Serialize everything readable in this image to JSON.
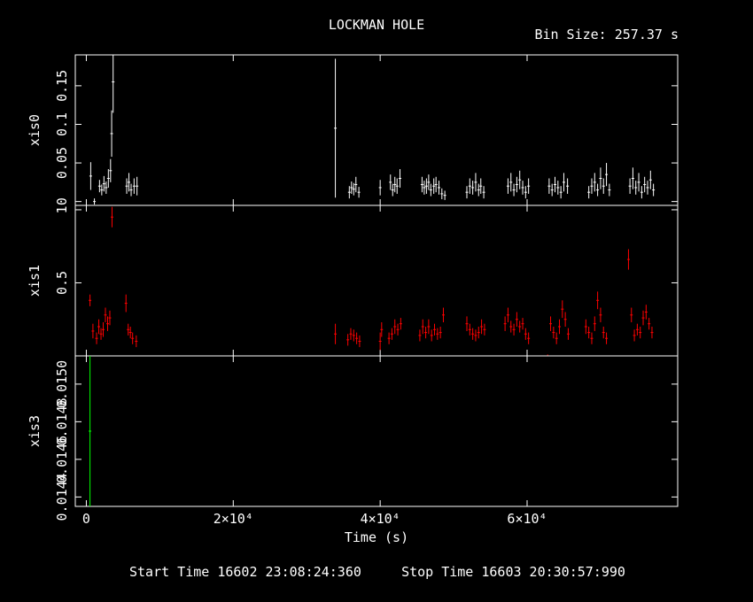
{
  "title": "LOCKMAN HOLE",
  "bin_size_label": "Bin Size: 257.37 s",
  "times": {
    "start": "Start Time 16602 23:08:24:360",
    "stop": "Stop Time 16603 20:30:57:990"
  },
  "chart_data": {
    "type": "scatter",
    "title": "LOCKMAN HOLE",
    "xlabel": "Time (s)",
    "xlim": [
      -1500,
      80500
    ],
    "xticks": [
      0,
      20000,
      40000,
      60000
    ],
    "xtick_labels": [
      "0",
      "2×10⁴",
      "4×10⁴",
      "6×10⁴"
    ],
    "background": "#000000",
    "panels": [
      {
        "name": "xis0",
        "ylabel": "xis0",
        "color": "#ffffff",
        "ylim": [
          -0.005,
          0.19
        ],
        "yticks": [
          0,
          0.05,
          0.1,
          0.15
        ],
        "ytick_labels": [
          "0",
          "0.05",
          "0.1",
          "0.15"
        ],
        "points": [
          [
            600,
            0.033,
            0.018
          ],
          [
            1100,
            0.0,
            0.004
          ],
          [
            1800,
            0.02,
            0.008
          ],
          [
            2100,
            0.015,
            0.007
          ],
          [
            2400,
            0.023,
            0.01
          ],
          [
            2700,
            0.018,
            0.008
          ],
          [
            3000,
            0.03,
            0.012
          ],
          [
            3300,
            0.04,
            0.015
          ],
          [
            3450,
            0.088,
            0.03
          ],
          [
            3650,
            0.155,
            0.04
          ],
          [
            5500,
            0.02,
            0.01
          ],
          [
            5800,
            0.025,
            0.012
          ],
          [
            6100,
            0.015,
            0.008
          ],
          [
            6500,
            0.02,
            0.01
          ],
          [
            6900,
            0.02,
            0.012
          ],
          [
            33900,
            0.095,
            0.09
          ],
          [
            35800,
            0.012,
            0.008
          ],
          [
            36100,
            0.018,
            0.008
          ],
          [
            36400,
            0.016,
            0.008
          ],
          [
            36700,
            0.022,
            0.01
          ],
          [
            37100,
            0.012,
            0.007
          ],
          [
            40000,
            0.018,
            0.01
          ],
          [
            41400,
            0.025,
            0.01
          ],
          [
            41700,
            0.015,
            0.008
          ],
          [
            42000,
            0.022,
            0.01
          ],
          [
            42300,
            0.02,
            0.01
          ],
          [
            42700,
            0.03,
            0.012
          ],
          [
            45700,
            0.022,
            0.01
          ],
          [
            46000,
            0.018,
            0.009
          ],
          [
            46300,
            0.02,
            0.01
          ],
          [
            46600,
            0.025,
            0.01
          ],
          [
            46900,
            0.015,
            0.008
          ],
          [
            47300,
            0.02,
            0.01
          ],
          [
            47600,
            0.022,
            0.01
          ],
          [
            48000,
            0.018,
            0.009
          ],
          [
            48400,
            0.01,
            0.007
          ],
          [
            48800,
            0.008,
            0.006
          ],
          [
            51800,
            0.012,
            0.008
          ],
          [
            52200,
            0.02,
            0.01
          ],
          [
            52600,
            0.018,
            0.009
          ],
          [
            53000,
            0.025,
            0.012
          ],
          [
            53400,
            0.015,
            0.008
          ],
          [
            53700,
            0.02,
            0.01
          ],
          [
            54100,
            0.012,
            0.008
          ],
          [
            57400,
            0.02,
            0.01
          ],
          [
            57800,
            0.025,
            0.012
          ],
          [
            58200,
            0.015,
            0.008
          ],
          [
            58600,
            0.022,
            0.01
          ],
          [
            59000,
            0.028,
            0.012
          ],
          [
            59400,
            0.018,
            0.009
          ],
          [
            59800,
            0.012,
            0.008
          ],
          [
            60200,
            0.02,
            0.01
          ],
          [
            63000,
            0.02,
            0.01
          ],
          [
            63400,
            0.015,
            0.008
          ],
          [
            63800,
            0.022,
            0.01
          ],
          [
            64200,
            0.018,
            0.009
          ],
          [
            64600,
            0.012,
            0.008
          ],
          [
            65000,
            0.025,
            0.012
          ],
          [
            65500,
            0.02,
            0.01
          ],
          [
            68400,
            0.012,
            0.008
          ],
          [
            68800,
            0.02,
            0.01
          ],
          [
            69200,
            0.025,
            0.012
          ],
          [
            69600,
            0.015,
            0.008
          ],
          [
            70000,
            0.03,
            0.014
          ],
          [
            70400,
            0.02,
            0.01
          ],
          [
            70800,
            0.035,
            0.015
          ],
          [
            71200,
            0.015,
            0.008
          ],
          [
            74000,
            0.02,
            0.01
          ],
          [
            74400,
            0.03,
            0.014
          ],
          [
            74800,
            0.018,
            0.009
          ],
          [
            75200,
            0.025,
            0.012
          ],
          [
            75600,
            0.012,
            0.008
          ],
          [
            76000,
            0.022,
            0.01
          ],
          [
            76400,
            0.018,
            0.009
          ],
          [
            76800,
            0.028,
            0.012
          ],
          [
            77200,
            0.015,
            0.008
          ]
        ]
      },
      {
        "name": "xis1",
        "ylabel": "xis1",
        "color": "#ff0000",
        "ylim": [
          0,
          1.03
        ],
        "yticks": [
          0.5,
          1
        ],
        "ytick_labels": [
          "0.5",
          "1"
        ],
        "points": [
          [
            500,
            0.38,
            0.04
          ],
          [
            900,
            0.17,
            0.05
          ],
          [
            1400,
            0.12,
            0.04
          ],
          [
            1700,
            0.2,
            0.05
          ],
          [
            2000,
            0.15,
            0.04
          ],
          [
            2300,
            0.18,
            0.05
          ],
          [
            2600,
            0.28,
            0.05
          ],
          [
            2900,
            0.22,
            0.05
          ],
          [
            3200,
            0.26,
            0.05
          ],
          [
            3500,
            0.95,
            0.07
          ],
          [
            5400,
            0.36,
            0.06
          ],
          [
            5700,
            0.18,
            0.04
          ],
          [
            6000,
            0.16,
            0.04
          ],
          [
            6300,
            0.12,
            0.04
          ],
          [
            6800,
            0.1,
            0.04
          ],
          [
            33900,
            0.15,
            0.07
          ],
          [
            35600,
            0.11,
            0.04
          ],
          [
            36000,
            0.15,
            0.04
          ],
          [
            36400,
            0.14,
            0.04
          ],
          [
            36800,
            0.12,
            0.04
          ],
          [
            37200,
            0.1,
            0.04
          ],
          [
            40000,
            0.1,
            0.06
          ],
          [
            40200,
            0.18,
            0.05
          ],
          [
            41200,
            0.12,
            0.04
          ],
          [
            41600,
            0.15,
            0.04
          ],
          [
            42000,
            0.2,
            0.05
          ],
          [
            42400,
            0.18,
            0.04
          ],
          [
            42800,
            0.22,
            0.04
          ],
          [
            45400,
            0.14,
            0.04
          ],
          [
            45800,
            0.2,
            0.05
          ],
          [
            46200,
            0.16,
            0.04
          ],
          [
            46600,
            0.2,
            0.05
          ],
          [
            47000,
            0.14,
            0.04
          ],
          [
            47400,
            0.18,
            0.04
          ],
          [
            47800,
            0.15,
            0.04
          ],
          [
            48200,
            0.16,
            0.04
          ],
          [
            48600,
            0.28,
            0.05
          ],
          [
            51800,
            0.22,
            0.05
          ],
          [
            52200,
            0.18,
            0.04
          ],
          [
            52600,
            0.15,
            0.04
          ],
          [
            53000,
            0.14,
            0.04
          ],
          [
            53400,
            0.16,
            0.04
          ],
          [
            53800,
            0.2,
            0.05
          ],
          [
            54200,
            0.18,
            0.04
          ],
          [
            57000,
            0.22,
            0.05
          ],
          [
            57400,
            0.28,
            0.05
          ],
          [
            57800,
            0.2,
            0.04
          ],
          [
            58200,
            0.18,
            0.04
          ],
          [
            58600,
            0.25,
            0.05
          ],
          [
            59000,
            0.2,
            0.04
          ],
          [
            59400,
            0.22,
            0.04
          ],
          [
            59800,
            0.15,
            0.04
          ],
          [
            60200,
            0.12,
            0.04
          ],
          [
            62800,
            0.0,
            0.01
          ],
          [
            63200,
            0.22,
            0.05
          ],
          [
            63600,
            0.16,
            0.04
          ],
          [
            64000,
            0.12,
            0.04
          ],
          [
            64400,
            0.2,
            0.05
          ],
          [
            64800,
            0.32,
            0.06
          ],
          [
            65200,
            0.25,
            0.05
          ],
          [
            65600,
            0.15,
            0.04
          ],
          [
            68000,
            0.2,
            0.05
          ],
          [
            68400,
            0.16,
            0.04
          ],
          [
            68800,
            0.12,
            0.04
          ],
          [
            69200,
            0.22,
            0.05
          ],
          [
            69600,
            0.38,
            0.06
          ],
          [
            70000,
            0.28,
            0.05
          ],
          [
            70400,
            0.16,
            0.04
          ],
          [
            70800,
            0.12,
            0.04
          ],
          [
            73800,
            0.66,
            0.07
          ],
          [
            74200,
            0.28,
            0.05
          ],
          [
            74600,
            0.14,
            0.04
          ],
          [
            75000,
            0.18,
            0.04
          ],
          [
            75400,
            0.16,
            0.04
          ],
          [
            75800,
            0.26,
            0.05
          ],
          [
            76200,
            0.3,
            0.05
          ],
          [
            76600,
            0.22,
            0.04
          ],
          [
            77000,
            0.16,
            0.04
          ]
        ]
      },
      {
        "name": "xis3",
        "ylabel": "xis3",
        "color": "#00ff00",
        "ylim": [
          0.01435,
          0.01515
        ],
        "yticks": [
          0.0144,
          0.0146,
          0.0148,
          0.015
        ],
        "ytick_labels": [
          "0.0144",
          "0.0146",
          "0.0148",
          "0.0150"
        ],
        "points": [
          [
            500,
            0.01475,
            0.0004
          ]
        ]
      }
    ]
  }
}
